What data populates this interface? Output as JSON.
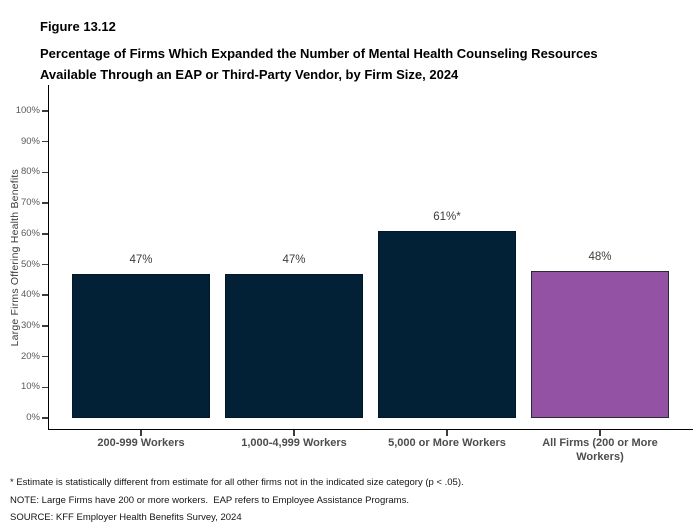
{
  "header": {
    "figure_label": "Figure 13.12",
    "title_lines": [
      "Percentage of Firms Which Expanded the Number of Mental Health Counseling Resources",
      "Available Through an EAP or Third-Party Vendor, by Firm Size, 2024"
    ]
  },
  "chart_data": {
    "type": "bar",
    "title": "Percentage of Firms Which Expanded the Number of Mental Health Counseling Resources Available Through an EAP or Third-Party Vendor, by Firm Size, 2024",
    "categories": [
      "200-999 Workers",
      "1,000-4,999 Workers",
      "5,000 or More Workers",
      "All Firms (200 or More Workers)"
    ],
    "values": [
      47,
      47,
      61,
      48
    ],
    "value_labels": [
      "47%",
      "47%",
      "61%*",
      "48%"
    ],
    "bar_colors": [
      "#032136",
      "#032136",
      "#032136",
      "#9452A5"
    ],
    "bar_border_colors": [
      "#021826",
      "#021826",
      "#021826",
      "#2b2b35"
    ],
    "xlabel": "",
    "ylabel": "Large Firms Offering Health Benefits",
    "ylim": [
      0,
      100
    ],
    "ytick_step": 10,
    "ytick_suffix": "%",
    "grid": false,
    "legend": false,
    "axis_color": "#000000"
  },
  "footnotes": [
    "* Estimate is statistically different from estimate for all other firms not in the indicated size category (p < .05).",
    "NOTE: Large Firms have 200 or more workers.  EAP refers to Employee Assistance Programs.",
    "SOURCE: KFF Employer Health Benefits Survey, 2024"
  ]
}
